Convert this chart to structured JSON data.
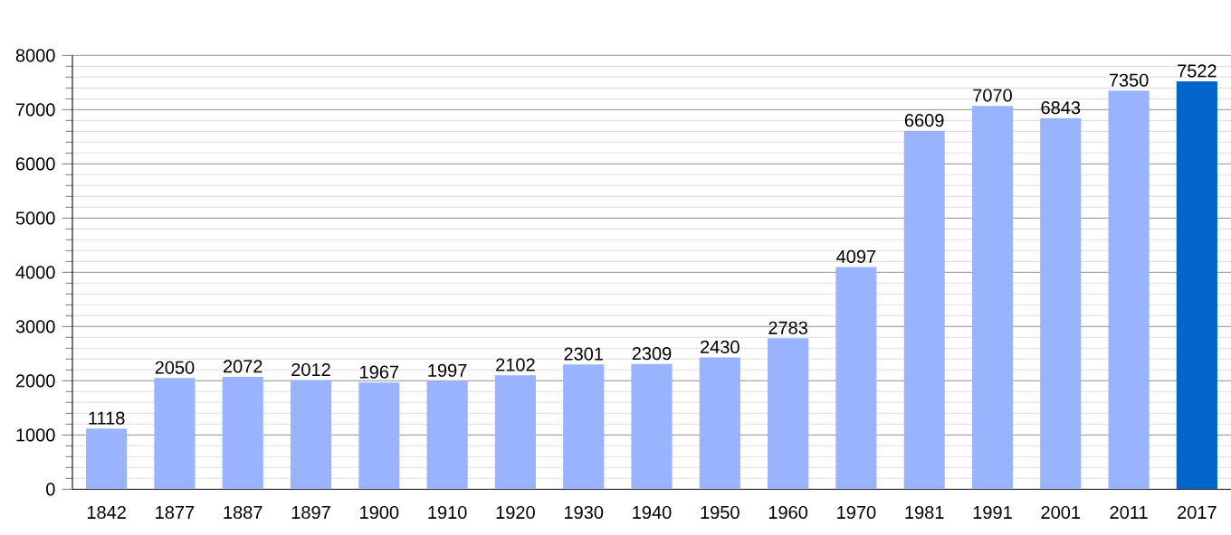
{
  "chart_data": {
    "type": "bar",
    "categories": [
      "1842",
      "1877",
      "1887",
      "1897",
      "1900",
      "1910",
      "1920",
      "1930",
      "1940",
      "1950",
      "1960",
      "1970",
      "1981",
      "1991",
      "2001",
      "2011",
      "2017"
    ],
    "values": [
      1118,
      2050,
      2072,
      2012,
      1967,
      1997,
      2102,
      2301,
      2309,
      2430,
      2783,
      4097,
      6609,
      7070,
      6843,
      7350,
      7522
    ],
    "colors": [
      "#99b3ff",
      "#99b3ff",
      "#99b3ff",
      "#99b3ff",
      "#99b3ff",
      "#99b3ff",
      "#99b3ff",
      "#99b3ff",
      "#99b3ff",
      "#99b3ff",
      "#99b3ff",
      "#99b3ff",
      "#99b3ff",
      "#99b3ff",
      "#99b3ff",
      "#99b3ff",
      "#0066cc"
    ],
    "ylim": [
      0,
      8000
    ],
    "yticks": [
      0,
      1000,
      2000,
      3000,
      4000,
      5000,
      6000,
      7000,
      8000
    ],
    "grid": "y",
    "data_labels": true
  }
}
